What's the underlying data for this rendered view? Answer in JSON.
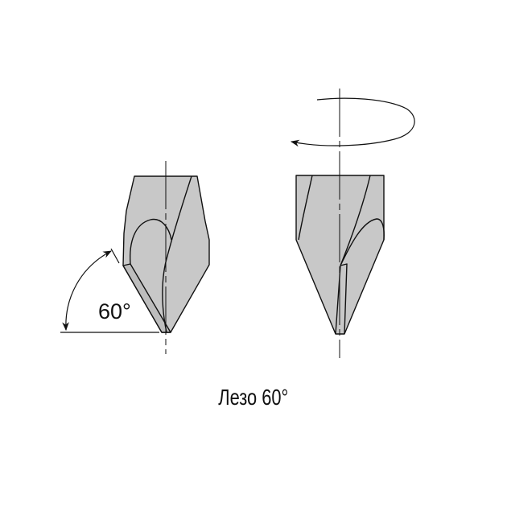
{
  "diagram": {
    "angle_label": "60°",
    "caption": "Лезо 60°",
    "colors": {
      "fill": "#c8c8c8",
      "line": "#111111"
    }
  }
}
